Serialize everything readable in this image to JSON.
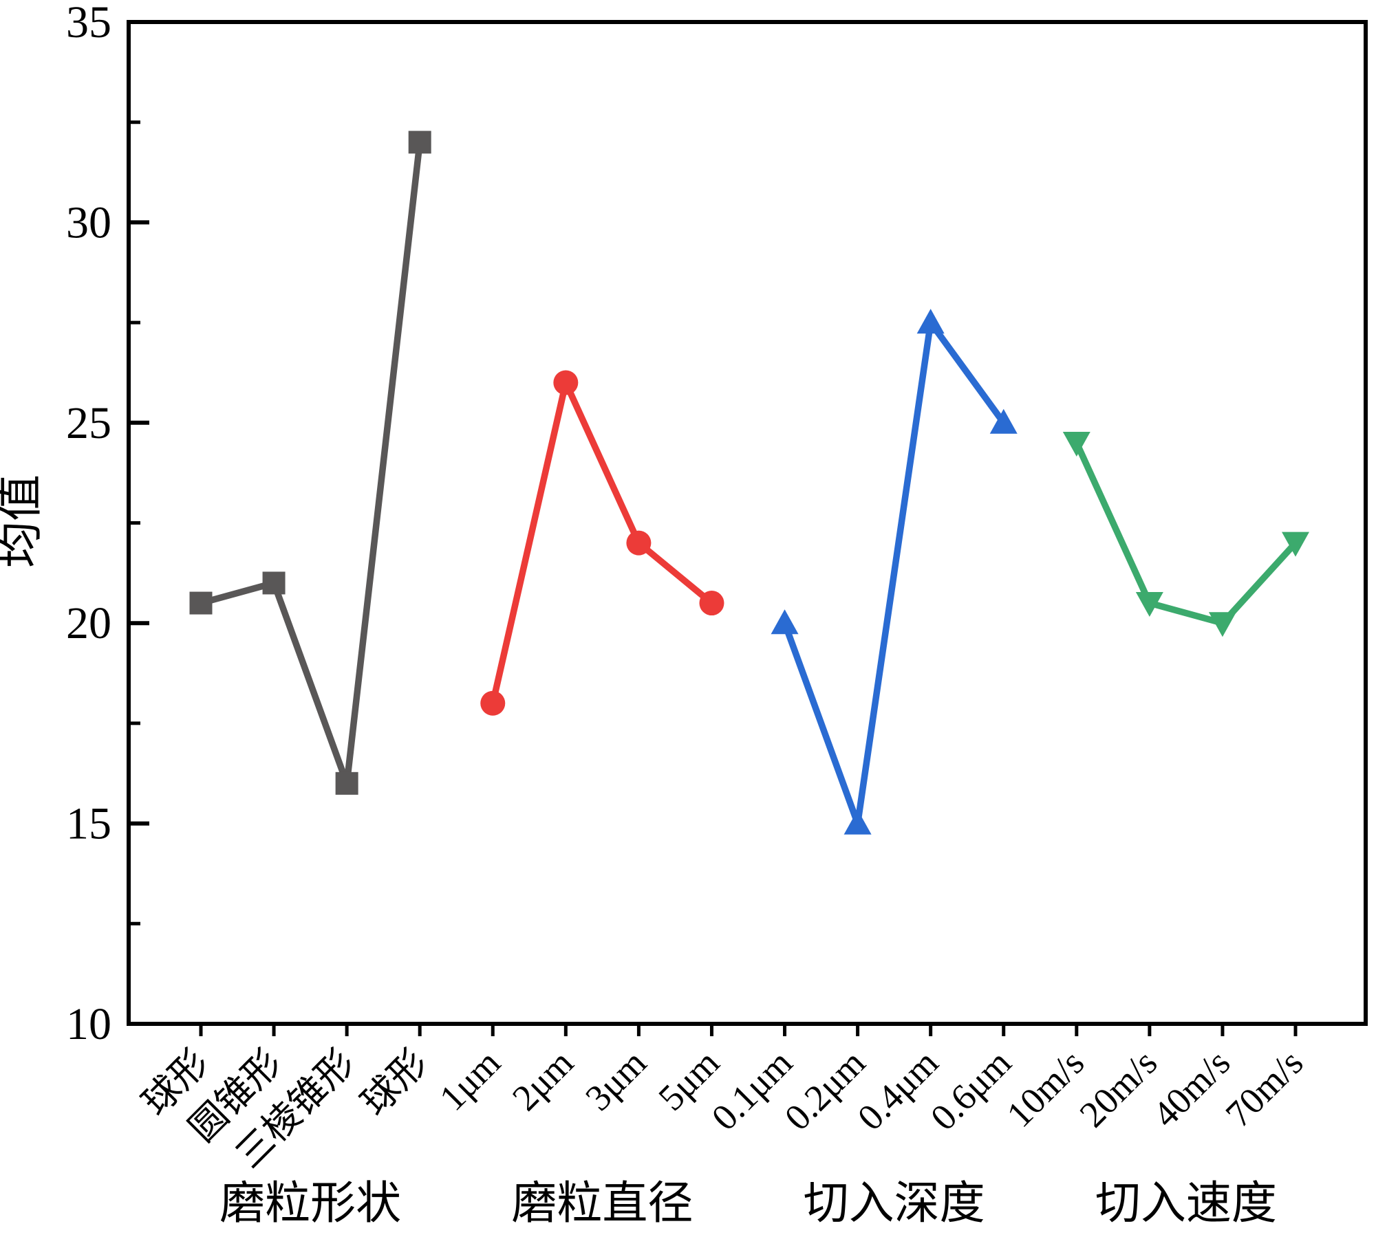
{
  "page": {
    "background": "#ffffff",
    "frame_color": "#000000"
  },
  "chart_data": {
    "type": "line",
    "title": "",
    "xlabel": "",
    "ylabel": "均值",
    "ylim": [
      10,
      35
    ],
    "yticks": [
      10,
      15,
      20,
      25,
      30,
      35
    ],
    "y_minor_ticks": [
      12.5,
      17.5,
      22.5,
      27.5,
      32.5
    ],
    "grid": false,
    "legend": "none",
    "axis_color": "#000000",
    "series": [
      {
        "name": "磨粒形状",
        "marker": "square",
        "color": "#595757",
        "categories": [
          "球形",
          "圆锥形",
          "三棱锥形",
          "球形"
        ],
        "values": [
          20.5,
          21,
          16,
          32
        ]
      },
      {
        "name": "磨粒直径",
        "marker": "circle",
        "color": "#ec3b38",
        "categories": [
          "1μm",
          "2μm",
          "3μm",
          "5μm"
        ],
        "values": [
          18,
          26,
          22,
          20.5
        ]
      },
      {
        "name": "切入深度",
        "marker": "triangle-up",
        "color": "#2a6bd2",
        "categories": [
          "0.1μm",
          "0.2μm",
          "0.4μm",
          "0.6μm"
        ],
        "values": [
          20,
          15,
          27.5,
          25
        ]
      },
      {
        "name": "切入速度",
        "marker": "triangle-down",
        "color": "#3caa6d",
        "categories": [
          "10m/s",
          "20m/s",
          "40m/s",
          "70m/s"
        ],
        "values": [
          24.5,
          20.5,
          20,
          22
        ]
      }
    ]
  }
}
